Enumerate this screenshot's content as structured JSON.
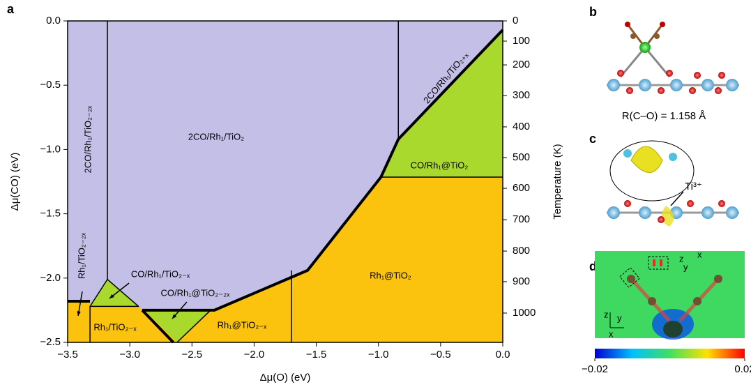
{
  "chart_data": {
    "type": "phase",
    "panel_label": "a",
    "x_label": "Δμ(O) (eV)",
    "y_label": "Δμ(CO) (eV)",
    "y2_label": "Temperature (K)",
    "xlim": [
      -3.5,
      0
    ],
    "ylim": [
      -2.5,
      0
    ],
    "xticks": [
      {
        "value": -3.5,
        "label": "−3.5"
      },
      {
        "value": -3,
        "label": "−3.0"
      },
      {
        "value": -2.5,
        "label": "−2.5"
      },
      {
        "value": -2,
        "label": "−2.0"
      },
      {
        "value": -1.5,
        "label": "−1.5"
      },
      {
        "value": -1,
        "label": "−1.0"
      },
      {
        "value": -0.5,
        "label": "−0.5"
      },
      {
        "value": 0,
        "label": "0.0"
      }
    ],
    "yticks": [
      {
        "value": 0,
        "label": "0.0"
      },
      {
        "value": -0.5,
        "label": "−0.5"
      },
      {
        "value": -1,
        "label": "−1.0"
      },
      {
        "value": -1.5,
        "label": "−1.5"
      },
      {
        "value": -2,
        "label": "−2.0"
      },
      {
        "value": -2.5,
        "label": "−2.5"
      }
    ],
    "y2ticks": [
      0,
      100,
      200,
      300,
      400,
      500,
      600,
      700,
      800,
      900,
      1000
    ],
    "y2tick_positions": [
      0,
      -0.157,
      -0.342,
      -0.58,
      -0.824,
      -1.063,
      -1.302,
      -1.546,
      -1.79,
      -2.028,
      -2.272
    ],
    "regions": [
      {
        "color": "#fbc20e",
        "x": [
          -3.5,
          0,
          0,
          -3.5
        ],
        "y": [
          0,
          0,
          -2.5,
          -2.5
        ]
      },
      {
        "color": "#c4bfe6",
        "x": [
          -3.5,
          0,
          0,
          -0.84,
          -0.98,
          -1.57,
          -2.32,
          -2.9,
          -2.93,
          -3.18,
          -3.32,
          -3.32,
          -3.5
        ],
        "y": [
          0,
          0,
          -0.07,
          -0.92,
          -1.215,
          -1.94,
          -2.25,
          -2.25,
          -2.22,
          -2.01,
          -2.22,
          -2.18,
          -2.18
        ]
      },
      {
        "color": "#a9d92c",
        "x": [
          0,
          0,
          -0.98,
          -0.84
        ],
        "y": [
          -0.07,
          -1.215,
          -1.215,
          -0.92
        ]
      },
      {
        "color": "#a9d92c",
        "x": [
          -3.18,
          -3.32,
          -2.93
        ],
        "y": [
          -2.01,
          -2.22,
          -2.22
        ]
      },
      {
        "color": "#a9d92c",
        "x": [
          -2.88,
          -2.35,
          -2.62
        ],
        "y": [
          -2.25,
          -2.25,
          -2.5
        ]
      }
    ],
    "boundaries": [
      {
        "thick": true,
        "x": [
          0,
          -0.84,
          -0.98,
          -1.57,
          -2.32,
          -2.9
        ],
        "y": [
          -0.07,
          -0.92,
          -1.215,
          -1.94,
          -2.25,
          -2.25
        ]
      },
      {
        "thick": true,
        "x": [
          -2.9,
          -2.65
        ],
        "y": [
          -2.25,
          -2.5
        ]
      },
      {
        "thick": true,
        "x": [
          -3.5,
          -3.32
        ],
        "y": [
          -2.18,
          -2.18
        ]
      },
      {
        "thick": false,
        "x": [
          -3.18,
          -3.18
        ],
        "y": [
          0,
          -2.01
        ]
      },
      {
        "thick": false,
        "x": [
          -0.84,
          -0.84
        ],
        "y": [
          0,
          -0.92
        ]
      },
      {
        "thick": false,
        "x": [
          -0.98,
          0
        ],
        "y": [
          -1.215,
          -1.215
        ]
      },
      {
        "thick": false,
        "x": [
          -1.7,
          -1.7
        ],
        "y": [
          -1.94,
          -2.5
        ]
      },
      {
        "thick": false,
        "x": [
          -2.35,
          -2.62
        ],
        "y": [
          -2.25,
          -2.5
        ]
      },
      {
        "thick": false,
        "x": [
          -3.32,
          -3.18,
          -2.93,
          -3.32,
          -3.32
        ],
        "y": [
          -2.22,
          -2.01,
          -2.22,
          -2.22,
          -2.5
        ]
      }
    ],
    "region_labels": [
      "2CO/Rh₁/TiO₂",
      "2CO/Rh₁/TiO₂₋₂ₓ",
      "2CO/Rh₁/TiO₂₊ₓ",
      "CO/Rh₁@TiO₂",
      "Rh₁@TiO₂",
      "Rh₁/TiO₂₋₂ₓ",
      "CO/Rh₁/TiO₂₋ₓ",
      "CO/Rh₁@TiO₂₋₂ₓ",
      "Rh₁/TiO₂₋ₓ",
      "Rh₁@TiO₂₋ₓ"
    ]
  },
  "panels": {
    "b": {
      "label": "b",
      "caption": "R(C–O) = 1.158 Å"
    },
    "c": {
      "label": "c",
      "annotation": "Ti³⁺"
    },
    "d": {
      "label": "d",
      "axis_letters": [
        "z",
        "x",
        "y",
        "z",
        "y",
        "x"
      ],
      "colorbar_ticks": [
        {
          "value": -0.02,
          "label": "−0.02"
        },
        {
          "value": 0.02,
          "label": "0.02"
        }
      ]
    }
  }
}
